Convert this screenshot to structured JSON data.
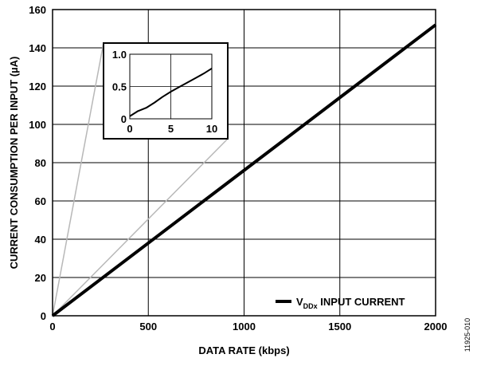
{
  "chart_data": [
    {
      "type": "line",
      "xlabel": "DATA RATE (kbps)",
      "ylabel": "CURRENT CONSUMPTION PER INPUT (µA)",
      "xlim": [
        0,
        2000
      ],
      "ylim": [
        0,
        160
      ],
      "x_ticks": [
        "0",
        "500",
        "1000",
        "1500",
        "2000"
      ],
      "y_ticks": [
        "0",
        "20",
        "40",
        "60",
        "80",
        "100",
        "120",
        "140",
        "160"
      ],
      "grid": true,
      "legend_position": "bottom-right",
      "series": [
        {
          "name_parts": {
            "base": "V",
            "sub": "DDx",
            "rest": " INPUT CURRENT"
          },
          "x": [
            0,
            500,
            1000,
            1500,
            2000
          ],
          "y": [
            0,
            38,
            76,
            114,
            152
          ],
          "color": "#000000"
        }
      ]
    },
    {
      "type": "line",
      "role": "inset",
      "xlim": [
        0,
        10
      ],
      "ylim": [
        0,
        1.0
      ],
      "x_ticks": [
        "0",
        "5",
        "10"
      ],
      "y_ticks": [
        "0",
        "0.5",
        "1.0"
      ],
      "grid": true,
      "series": [
        {
          "x": [
            0,
            1,
            2,
            3,
            4,
            5,
            6,
            7,
            8,
            9,
            10
          ],
          "y": [
            0.04,
            0.12,
            0.17,
            0.25,
            0.34,
            0.42,
            0.49,
            0.56,
            0.63,
            0.7,
            0.78
          ],
          "color": "#000000"
        }
      ]
    }
  ],
  "figure_id": "11925-010"
}
